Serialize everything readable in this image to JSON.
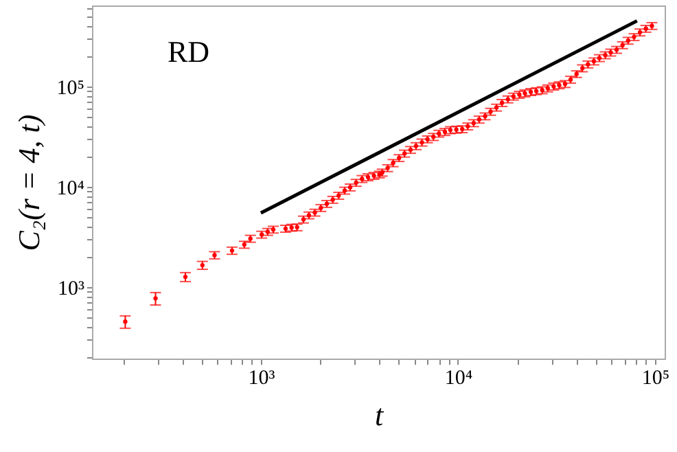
{
  "chart_data": {
    "type": "scatter",
    "xlabel": "t",
    "ylabel": "C₂(r = 4, t)",
    "annotations": [
      "RD"
    ],
    "log": "xy",
    "grid": false,
    "xlim": [
      139,
      112000
    ],
    "ylim": [
      195,
      640000
    ],
    "xticks": [
      {
        "value": 200,
        "label": null
      },
      {
        "value": 300,
        "label": null
      },
      {
        "value": 400,
        "label": null
      },
      {
        "value": 500,
        "label": null
      },
      {
        "value": 600,
        "label": null
      },
      {
        "value": 700,
        "label": null
      },
      {
        "value": 800,
        "label": null
      },
      {
        "value": 900,
        "label": null
      },
      {
        "value": 1000,
        "label": "10³"
      },
      {
        "value": 2000,
        "label": null
      },
      {
        "value": 3000,
        "label": null
      },
      {
        "value": 4000,
        "label": null
      },
      {
        "value": 5000,
        "label": null
      },
      {
        "value": 6000,
        "label": null
      },
      {
        "value": 7000,
        "label": null
      },
      {
        "value": 8000,
        "label": null
      },
      {
        "value": 9000,
        "label": null
      },
      {
        "value": 10000,
        "label": "10⁴"
      },
      {
        "value": 20000,
        "label": null
      },
      {
        "value": 30000,
        "label": null
      },
      {
        "value": 40000,
        "label": null
      },
      {
        "value": 50000,
        "label": null
      },
      {
        "value": 60000,
        "label": null
      },
      {
        "value": 70000,
        "label": null
      },
      {
        "value": 80000,
        "label": null
      },
      {
        "value": 90000,
        "label": null
      },
      {
        "value": 100000,
        "label": "10⁵"
      }
    ],
    "yticks": [
      {
        "value": 200,
        "label": null
      },
      {
        "value": 300,
        "label": null
      },
      {
        "value": 400,
        "label": null
      },
      {
        "value": 500,
        "label": null
      },
      {
        "value": 600,
        "label": null
      },
      {
        "value": 700,
        "label": null
      },
      {
        "value": 800,
        "label": null
      },
      {
        "value": 900,
        "label": null
      },
      {
        "value": 1000,
        "label": "10³"
      },
      {
        "value": 2000,
        "label": null
      },
      {
        "value": 3000,
        "label": null
      },
      {
        "value": 4000,
        "label": null
      },
      {
        "value": 5000,
        "label": null
      },
      {
        "value": 6000,
        "label": null
      },
      {
        "value": 7000,
        "label": null
      },
      {
        "value": 8000,
        "label": null
      },
      {
        "value": 9000,
        "label": null
      },
      {
        "value": 10000,
        "label": "10⁴"
      },
      {
        "value": 20000,
        "label": null
      },
      {
        "value": 30000,
        "label": null
      },
      {
        "value": 40000,
        "label": null
      },
      {
        "value": 50000,
        "label": null
      },
      {
        "value": 60000,
        "label": null
      },
      {
        "value": 70000,
        "label": null
      },
      {
        "value": 80000,
        "label": null
      },
      {
        "value": 90000,
        "label": null
      },
      {
        "value": 100000,
        "label": "10⁵"
      },
      {
        "value": 200000,
        "label": null
      },
      {
        "value": 300000,
        "label": null
      },
      {
        "value": 400000,
        "label": null
      },
      {
        "value": 500000,
        "label": null
      },
      {
        "value": 600000,
        "label": null
      }
    ],
    "series": [
      {
        "marker": "circle",
        "color": "#ff0000",
        "x": [
          205,
          292,
          414,
          505,
          582,
          714,
          824,
          885,
          1010,
          1083,
          1156,
          1335,
          1432,
          1527,
          1645,
          1754,
          1880,
          2016,
          2161,
          2317,
          2483,
          2663,
          2840,
          3044,
          3262,
          3497,
          3748,
          3998,
          4130,
          4400,
          4690,
          5030,
          5360,
          5750,
          6130,
          6570,
          7010,
          7510,
          8010,
          8590,
          9160,
          9820,
          10520,
          11220,
          12020,
          12820,
          13740,
          14650,
          15700,
          16740,
          17940,
          19140,
          20510,
          21880,
          23440,
          25000,
          26790,
          28570,
          30620,
          32660,
          34990,
          37320,
          40000,
          42850,
          45710,
          48980,
          52240,
          55980,
          59620,
          63890,
          68490,
          73100,
          78340,
          83950,
          89950,
          96500
        ],
        "values": [
          455,
          776,
          1270,
          1660,
          2090,
          2320,
          2660,
          3050,
          3350,
          3570,
          3760,
          3840,
          3930,
          3960,
          4740,
          5210,
          5550,
          6170,
          6780,
          7450,
          8180,
          9190,
          9890,
          11000,
          12000,
          12500,
          12900,
          13300,
          13900,
          15400,
          17300,
          19400,
          21500,
          23400,
          25500,
          27700,
          29800,
          31500,
          33900,
          35300,
          36800,
          37200,
          37600,
          40100,
          43200,
          46900,
          50500,
          56100,
          61700,
          68600,
          74500,
          79400,
          82800,
          85500,
          88200,
          90000,
          91800,
          95900,
          100000,
          103000,
          106000,
          117000,
          133000,
          152000,
          166000,
          178000,
          192000,
          205000,
          218000,
          232000,
          258000,
          286000,
          311000,
          346000,
          376000,
          401000
        ],
        "errors": [
          64,
          110,
          130,
          150,
          170,
          190,
          210,
          240,
          260,
          280,
          290,
          300,
          300,
          300,
          370,
          400,
          430,
          480,
          530,
          580,
          640,
          720,
          770,
          860,
          940,
          980,
          1000,
          1000,
          1100,
          1200,
          1400,
          1500,
          1700,
          1800,
          2000,
          2200,
          2300,
          2500,
          2600,
          2800,
          2900,
          2900,
          2900,
          3100,
          3400,
          3700,
          3900,
          4400,
          4800,
          5400,
          5800,
          6200,
          6500,
          6700,
          6900,
          7000,
          7200,
          7500,
          7800,
          8000,
          8300,
          9100,
          10000,
          12000,
          13000,
          14000,
          15000,
          16000,
          17000,
          18000,
          20000,
          22000,
          24000,
          27000,
          29000,
          31000
        ]
      },
      {
        "type": "line",
        "color": "#000000",
        "x": [
          1000,
          81100
        ],
        "values": [
          5500,
          450000
        ]
      }
    ]
  }
}
